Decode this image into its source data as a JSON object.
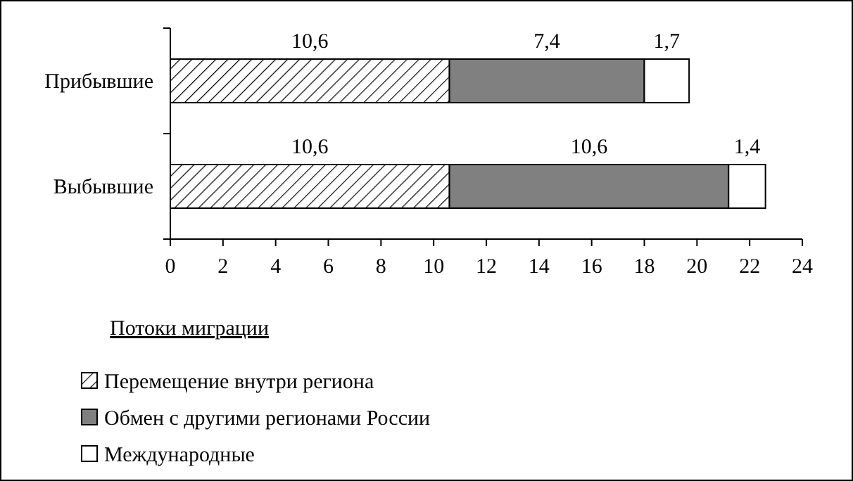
{
  "chart_data": {
    "type": "bar",
    "orientation": "horizontal",
    "stacked": true,
    "categories": [
      "Прибывшие",
      "Выбывшие"
    ],
    "series": [
      {
        "name": "Перемещение внутри региона",
        "color": "#000000",
        "values": [
          10.6,
          10.6
        ],
        "value_labels": [
          "10,6",
          "10,6"
        ]
      },
      {
        "name": "Обмен с другими регионами России",
        "color": "#808080",
        "values": [
          7.4,
          10.6
        ],
        "value_labels": [
          "7,4",
          "10,6"
        ]
      },
      {
        "name": "Международные",
        "color": "#ffffff",
        "values": [
          1.7,
          1.4
        ],
        "value_labels": [
          "1,7",
          "1,4"
        ]
      }
    ],
    "xlim": [
      0,
      24
    ],
    "xticks": [
      0,
      2,
      4,
      6,
      8,
      10,
      12,
      14,
      16,
      18,
      20,
      22,
      24
    ],
    "legend_title": "Потоки миграции",
    "legend": "bottom left",
    "grid": false
  }
}
